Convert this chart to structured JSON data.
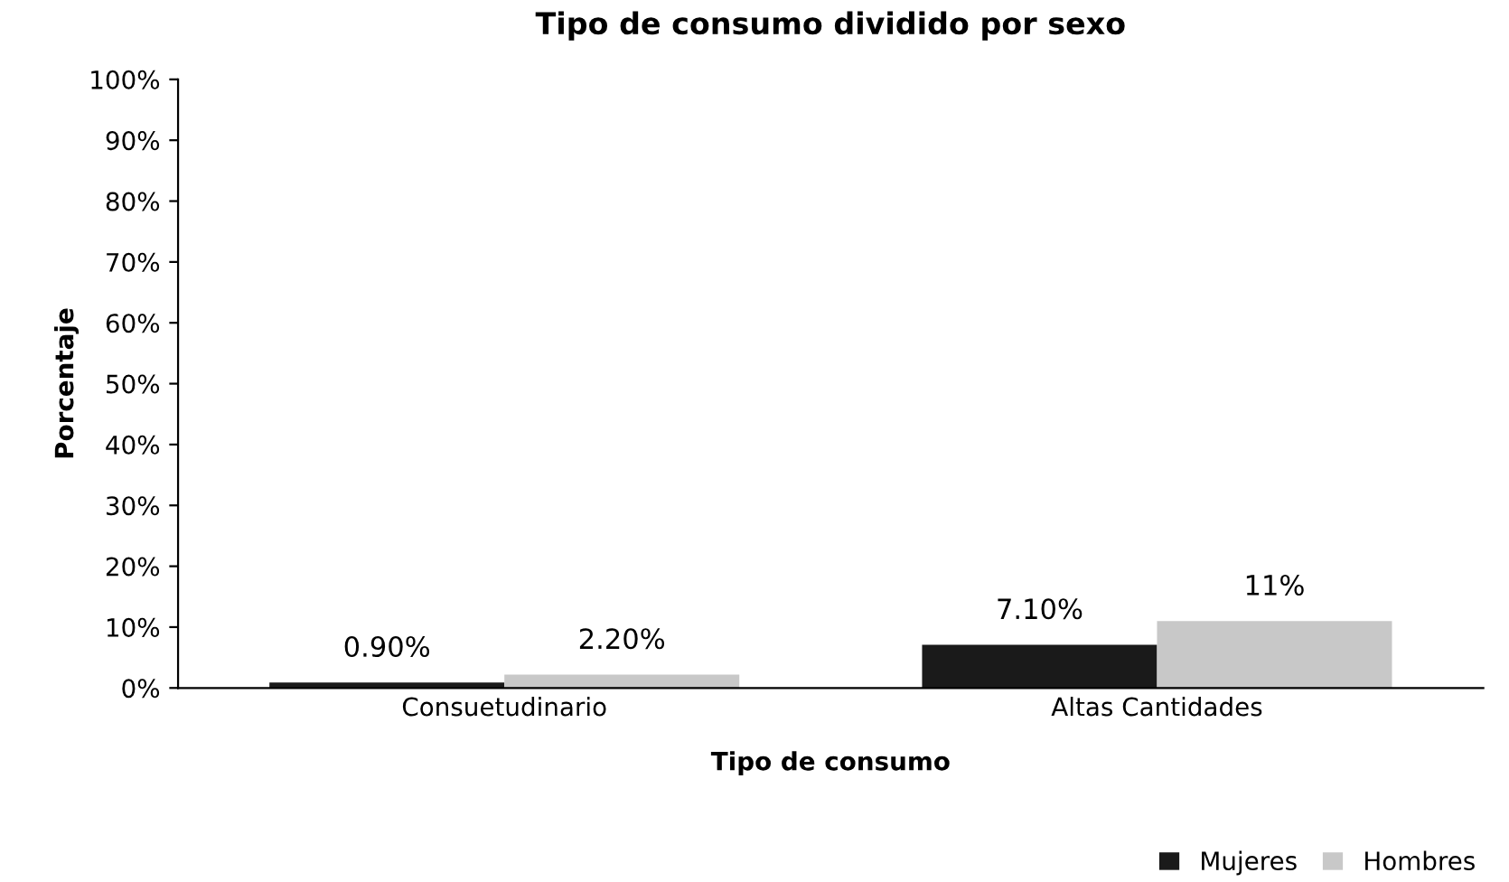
{
  "chart_data": {
    "type": "bar",
    "title": "Tipo de consumo dividido por sexo",
    "xlabel": "Tipo de consumo",
    "ylabel": "Porcentaje",
    "categories": [
      "Consuetudinario",
      "Altas Cantidades"
    ],
    "series": [
      {
        "name": "Mujeres",
        "color": "#1a1a1a",
        "values": [
          0.9,
          7.1
        ],
        "value_labels": [
          "0.90%",
          "7.10%"
        ]
      },
      {
        "name": "Hombres",
        "color": "#c8c8c8",
        "values": [
          2.2,
          11
        ],
        "value_labels": [
          "2.20%",
          "11%"
        ]
      }
    ],
    "ylim": [
      0,
      100
    ],
    "yticks": [
      {
        "value": 0,
        "label": "0%"
      },
      {
        "value": 10,
        "label": "10%"
      },
      {
        "value": 20,
        "label": "20%"
      },
      {
        "value": 30,
        "label": "30%"
      },
      {
        "value": 40,
        "label": "40%"
      },
      {
        "value": 50,
        "label": "50%"
      },
      {
        "value": 60,
        "label": "60%"
      },
      {
        "value": 70,
        "label": "70%"
      },
      {
        "value": 80,
        "label": "80%"
      },
      {
        "value": 90,
        "label": "90%"
      },
      {
        "value": 100,
        "label": "100%"
      }
    ],
    "legend": "bottom right",
    "grid": false
  }
}
